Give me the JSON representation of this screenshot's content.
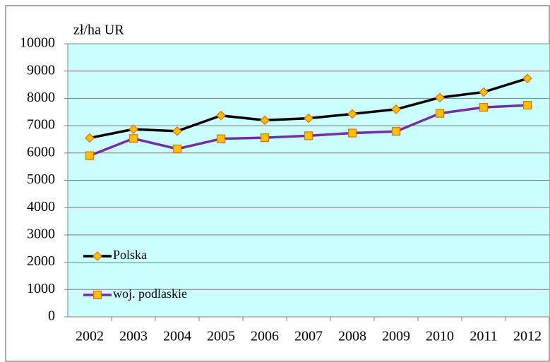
{
  "chart_data": {
    "type": "line",
    "y_unit_label": "zł/ha UR",
    "categories": [
      "2002",
      "2003",
      "2004",
      "2005",
      "2006",
      "2007",
      "2008",
      "2009",
      "2010",
      "2011",
      "2012"
    ],
    "series": [
      {
        "name": "Polska",
        "color": "#000000",
        "marker": "diamond",
        "marker_color": "#ffc000",
        "values": [
          6550,
          6870,
          6800,
          7370,
          7200,
          7270,
          7430,
          7600,
          8030,
          8230,
          8730
        ]
      },
      {
        "name": "woj. podlaskie",
        "color": "#7030a0",
        "marker": "square",
        "marker_color": "#ffc000",
        "values": [
          5900,
          6530,
          6150,
          6520,
          6560,
          6630,
          6730,
          6790,
          7450,
          7670,
          7750
        ]
      }
    ],
    "ylim": [
      0,
      10000
    ],
    "yticks": [
      0,
      1000,
      2000,
      3000,
      4000,
      5000,
      6000,
      7000,
      8000,
      9000,
      10000
    ],
    "grid": true,
    "plot_background": "#ccffff",
    "legend": "bottom-left"
  }
}
